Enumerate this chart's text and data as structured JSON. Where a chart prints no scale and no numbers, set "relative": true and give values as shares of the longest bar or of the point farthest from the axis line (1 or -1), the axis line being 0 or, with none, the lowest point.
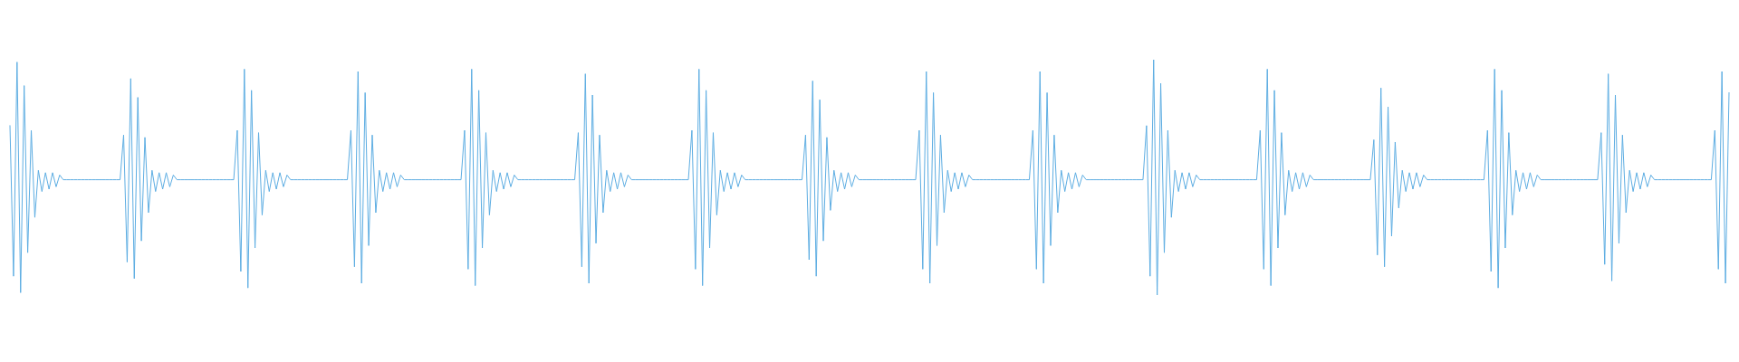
{
  "chart_data": {
    "type": "line",
    "relative": true,
    "categories": [
      null,
      null,
      null,
      null,
      null,
      null,
      null,
      null,
      null,
      null,
      null,
      null,
      null,
      null,
      null,
      null,
      null,
      null,
      null,
      null,
      null,
      null,
      null,
      null,
      null,
      null,
      null,
      null,
      null,
      null,
      null,
      null,
      null,
      null,
      null,
      null,
      null,
      null,
      null,
      null,
      null,
      null,
      null,
      null,
      null,
      null,
      null,
      null,
      null,
      null,
      null,
      null,
      null,
      null,
      null,
      null,
      null,
      null,
      null,
      null,
      null,
      null,
      null,
      null,
      null,
      null,
      null,
      null,
      null,
      null,
      null,
      null,
      null,
      null,
      null,
      null,
      null,
      null,
      null,
      null,
      null,
      null,
      null,
      null,
      null,
      null,
      null,
      null,
      null,
      null,
      null,
      null,
      null,
      null,
      null,
      null,
      null,
      null,
      null,
      null,
      null,
      null,
      null,
      null,
      null,
      null,
      null,
      null,
      null,
      null,
      null,
      null,
      null,
      null,
      null,
      null,
      null,
      null,
      null,
      null,
      null,
      null,
      null,
      null,
      null,
      null,
      null,
      null,
      null,
      null,
      null,
      null,
      null,
      null,
      null,
      null,
      null,
      null,
      null,
      null,
      null,
      null,
      null,
      null,
      null,
      null,
      null,
      null,
      null,
      null,
      null,
      null,
      null,
      null,
      null,
      null,
      null,
      null,
      null,
      null,
      null,
      null,
      null,
      null,
      null,
      null,
      null,
      null,
      null,
      null,
      null,
      null,
      null,
      null,
      null,
      null,
      null,
      null,
      null,
      null,
      null,
      null,
      null,
      null,
      null,
      null,
      null,
      null,
      null,
      null,
      null,
      null,
      null,
      null,
      null,
      null,
      null,
      null,
      null,
      null,
      null,
      null,
      null,
      null,
      null,
      null,
      null,
      null,
      null,
      null,
      null,
      null,
      null,
      null,
      null,
      null,
      null,
      null,
      null,
      null,
      null,
      null,
      null,
      null,
      null,
      null,
      null,
      null,
      null,
      null,
      null,
      null,
      null,
      null,
      null,
      null,
      null,
      null,
      null,
      null,
      null,
      null,
      null,
      null,
      null,
      null,
      null,
      null,
      null,
      null,
      null,
      null,
      null,
      null,
      null,
      null,
      null,
      null,
      null,
      null,
      null,
      null,
      null,
      null,
      null,
      null,
      null,
      null,
      null,
      null,
      null,
      null,
      null,
      null,
      null,
      null,
      null,
      null,
      null,
      null,
      null,
      null,
      null,
      null,
      null,
      null,
      null,
      null,
      null,
      null,
      null,
      null,
      null,
      null,
      null,
      null,
      null,
      null,
      null,
      null,
      null,
      null,
      null,
      null,
      null,
      null,
      null,
      null,
      null,
      null,
      null,
      null,
      null,
      null,
      null,
      null,
      null,
      null,
      null,
      null,
      null,
      null,
      null,
      null,
      null,
      null,
      null,
      null,
      null,
      null,
      null,
      null,
      null,
      null,
      null,
      null,
      null,
      null,
      null,
      null,
      null,
      null,
      null,
      null,
      null,
      null,
      null,
      null,
      null,
      null,
      null,
      null,
      null,
      null,
      null,
      null,
      null,
      null,
      null,
      null,
      null,
      null,
      null,
      null,
      null,
      null,
      null,
      null,
      null,
      null,
      null,
      null,
      null,
      null,
      null,
      null,
      null,
      null,
      null,
      null,
      null,
      null,
      null,
      null,
      null,
      null,
      null,
      null,
      null,
      null,
      null,
      null,
      null,
      null,
      null,
      null,
      null,
      null,
      null,
      null,
      null,
      null,
      null,
      null,
      null,
      null,
      null,
      null,
      null,
      null,
      null,
      null,
      null,
      null,
      null,
      null,
      null,
      null,
      null,
      null,
      null,
      null,
      null,
      null,
      null,
      null,
      null,
      null,
      null,
      null,
      null,
      null,
      null,
      null,
      null,
      null,
      null,
      null,
      null,
      null,
      null,
      null,
      null,
      null,
      null,
      null,
      null,
      null,
      null,
      null,
      null,
      null,
      null,
      null,
      null,
      null,
      null,
      null,
      null,
      null,
      null,
      null,
      null,
      null,
      null,
      null,
      null,
      null,
      null,
      null,
      null,
      null,
      null,
      null,
      null,
      null,
      null,
      null,
      null,
      null,
      null,
      null,
      null,
      null,
      null
    ],
    "series": [
      {
        "color": "#5dade2",
        "values": [
          0.72,
          0.08,
          0.99,
          0.01,
          0.89,
          0.18,
          0.7,
          0.33,
          0.53,
          0.44,
          0.52,
          0.45,
          0.52,
          0.46,
          0.51,
          0.49,
          0.49,
          0.49,
          0.49,
          0.49,
          0.49,
          0.49,
          0.49,
          0.49,
          0.49,
          0.49,
          0.49,
          0.49,
          0.49,
          0.49,
          0.49,
          0.49,
          0.68,
          0.14,
          0.92,
          0.07,
          0.84,
          0.23,
          0.67,
          0.35,
          0.53,
          0.44,
          0.52,
          0.45,
          0.52,
          0.46,
          0.51,
          0.49,
          0.49,
          0.49,
          0.49,
          0.49,
          0.49,
          0.49,
          0.49,
          0.49,
          0.49,
          0.49,
          0.49,
          0.49,
          0.49,
          0.49,
          0.49,
          0.49,
          0.7,
          0.1,
          0.96,
          0.03,
          0.87,
          0.2,
          0.69,
          0.34,
          0.53,
          0.44,
          0.52,
          0.45,
          0.52,
          0.46,
          0.51,
          0.49,
          0.49,
          0.49,
          0.49,
          0.49,
          0.49,
          0.49,
          0.49,
          0.49,
          0.49,
          0.49,
          0.49,
          0.49,
          0.49,
          0.49,
          0.49,
          0.49,
          0.7,
          0.12,
          0.95,
          0.05,
          0.86,
          0.21,
          0.68,
          0.35,
          0.53,
          0.44,
          0.52,
          0.45,
          0.52,
          0.46,
          0.51,
          0.49,
          0.49,
          0.49,
          0.49,
          0.49,
          0.49,
          0.49,
          0.49,
          0.49,
          0.49,
          0.49,
          0.49,
          0.49,
          0.49,
          0.49,
          0.49,
          0.49,
          0.7,
          0.11,
          0.96,
          0.04,
          0.87,
          0.2,
          0.69,
          0.34,
          0.53,
          0.44,
          0.52,
          0.45,
          0.52,
          0.46,
          0.51,
          0.49,
          0.49,
          0.49,
          0.49,
          0.49,
          0.49,
          0.49,
          0.49,
          0.49,
          0.49,
          0.49,
          0.49,
          0.49,
          0.49,
          0.49,
          0.49,
          0.49,
          0.69,
          0.12,
          0.94,
          0.05,
          0.85,
          0.22,
          0.68,
          0.35,
          0.53,
          0.44,
          0.52,
          0.45,
          0.52,
          0.46,
          0.51,
          0.49,
          0.49,
          0.49,
          0.49,
          0.49,
          0.49,
          0.49,
          0.49,
          0.49,
          0.49,
          0.49,
          0.49,
          0.49,
          0.49,
          0.49,
          0.49,
          0.49,
          0.7,
          0.11,
          0.96,
          0.04,
          0.87,
          0.2,
          0.69,
          0.34,
          0.53,
          0.44,
          0.52,
          0.45,
          0.52,
          0.46,
          0.51,
          0.49,
          0.49,
          0.49,
          0.49,
          0.49,
          0.49,
          0.49,
          0.49,
          0.49,
          0.49,
          0.49,
          0.49,
          0.49,
          0.49,
          0.49,
          0.49,
          0.49,
          0.68,
          0.15,
          0.91,
          0.08,
          0.83,
          0.23,
          0.67,
          0.36,
          0.53,
          0.44,
          0.52,
          0.45,
          0.52,
          0.46,
          0.51,
          0.49,
          0.49,
          0.49,
          0.49,
          0.49,
          0.49,
          0.49,
          0.49,
          0.49,
          0.49,
          0.49,
          0.49,
          0.49,
          0.49,
          0.49,
          0.49,
          0.49,
          0.7,
          0.11,
          0.95,
          0.05,
          0.86,
          0.21,
          0.68,
          0.35,
          0.53,
          0.44,
          0.52,
          0.45,
          0.52,
          0.46,
          0.51,
          0.49,
          0.49,
          0.49,
          0.49,
          0.49,
          0.49,
          0.49,
          0.49,
          0.49,
          0.49,
          0.49,
          0.49,
          0.49,
          0.49,
          0.49,
          0.49,
          0.49,
          0.7,
          0.11,
          0.95,
          0.05,
          0.86,
          0.21,
          0.68,
          0.35,
          0.53,
          0.44,
          0.52,
          0.45,
          0.52,
          0.46,
          0.51,
          0.49,
          0.49,
          0.49,
          0.49,
          0.49,
          0.49,
          0.49,
          0.49,
          0.49,
          0.49,
          0.49,
          0.49,
          0.49,
          0.49,
          0.49,
          0.49,
          0.49,
          0.72,
          0.08,
          1,
          0,
          0.9,
          0.18,
          0.7,
          0.33,
          0.53,
          0.44,
          0.52,
          0.45,
          0.52,
          0.46,
          0.51,
          0.49,
          0.49,
          0.49,
          0.49,
          0.49,
          0.49,
          0.49,
          0.49,
          0.49,
          0.49,
          0.49,
          0.49,
          0.49,
          0.49,
          0.49,
          0.49,
          0.49,
          0.7,
          0.11,
          0.96,
          0.04,
          0.87,
          0.2,
          0.69,
          0.34,
          0.53,
          0.44,
          0.52,
          0.45,
          0.52,
          0.46,
          0.51,
          0.49,
          0.49,
          0.49,
          0.49,
          0.49,
          0.49,
          0.49,
          0.49,
          0.49,
          0.49,
          0.49,
          0.49,
          0.49,
          0.49,
          0.49,
          0.49,
          0.49,
          0.66,
          0.17,
          0.88,
          0.12,
          0.8,
          0.25,
          0.65,
          0.37,
          0.53,
          0.44,
          0.52,
          0.45,
          0.52,
          0.46,
          0.51,
          0.49,
          0.49,
          0.49,
          0.49,
          0.49,
          0.49,
          0.49,
          0.49,
          0.49,
          0.49,
          0.49,
          0.49,
          0.49,
          0.49,
          0.49,
          0.49,
          0.49,
          0.7,
          0.1,
          0.96,
          0.03,
          0.87,
          0.2,
          0.69,
          0.34,
          0.53,
          0.44,
          0.52,
          0.45,
          0.52,
          0.46,
          0.51,
          0.49,
          0.49,
          0.49,
          0.49,
          0.49,
          0.49,
          0.49,
          0.49,
          0.49,
          0.49,
          0.49,
          0.49,
          0.49,
          0.49,
          0.49,
          0.49,
          0.49,
          0.69,
          0.13,
          0.94,
          0.06,
          0.85,
          0.22,
          0.68,
          0.35,
          0.53,
          0.44,
          0.52,
          0.45,
          0.52,
          0.46,
          0.51,
          0.49,
          0.49,
          0.49,
          0.49,
          0.49,
          0.49,
          0.49,
          0.49,
          0.49,
          0.49,
          0.49,
          0.49,
          0.49,
          0.49,
          0.49,
          0.49,
          0.49,
          0.7,
          0.11,
          0.95,
          0.05,
          0.86
        ]
      }
    ]
  }
}
